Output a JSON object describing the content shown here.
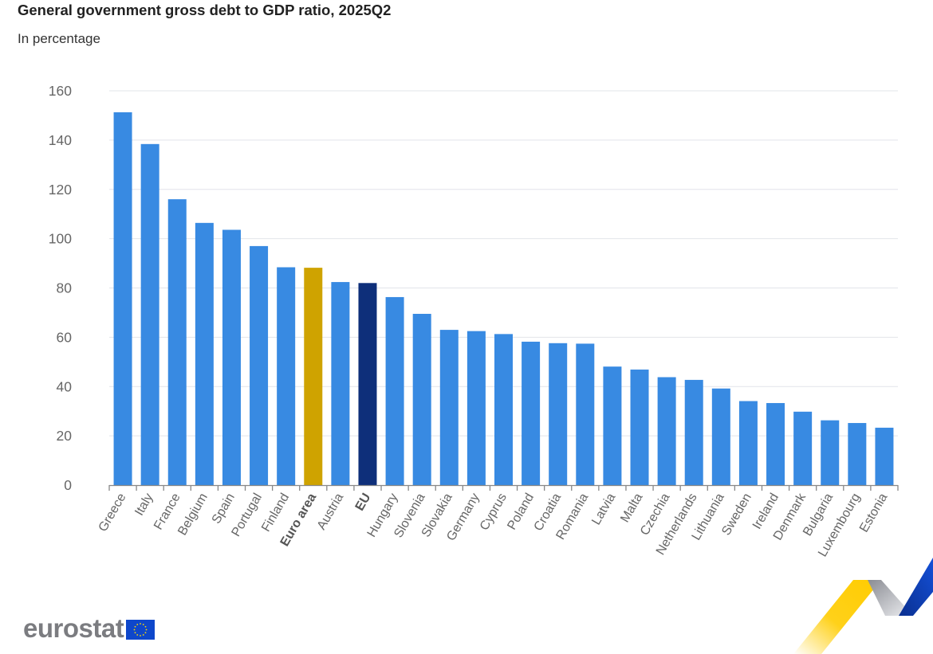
{
  "chart_data": {
    "type": "bar",
    "title": "General government gross debt to GDP ratio, 2025Q2",
    "subtitle": "In percentage",
    "xlabel": "",
    "ylabel": "",
    "ylim": [
      0,
      160
    ],
    "yticks": [
      0,
      20,
      40,
      60,
      80,
      100,
      120,
      140,
      160
    ],
    "grid": true,
    "legend": "none",
    "categories": [
      "Greece",
      "Italy",
      "France",
      "Belgium",
      "Spain",
      "Portugal",
      "Finland",
      "Euro area",
      "Austria",
      "EU",
      "Hungary",
      "Slovenia",
      "Slovakia",
      "Germany",
      "Cyprus",
      "Poland",
      "Croatia",
      "Romania",
      "Latvia",
      "Malta",
      "Czechia",
      "Netherlands",
      "Lithuania",
      "Sweden",
      "Ireland",
      "Denmark",
      "Bulgaria",
      "Luxembourg",
      "Estonia"
    ],
    "values": [
      151.3,
      138.4,
      116.0,
      106.4,
      103.6,
      97.0,
      88.4,
      88.2,
      82.4,
      82.0,
      76.3,
      69.5,
      63.0,
      62.5,
      61.3,
      58.2,
      57.6,
      57.4,
      48.1,
      46.9,
      43.8,
      42.7,
      39.2,
      34.1,
      33.3,
      29.8,
      26.3,
      25.2,
      23.3
    ],
    "highlight": {
      "Euro area": "euro_area",
      "EU": "eu"
    },
    "bold_categories": [
      "Euro area",
      "EU"
    ]
  },
  "colors": {
    "default_bar": "#388ae2",
    "euro_area": "#cfa300",
    "eu": "#0e2f7a",
    "flag_blue": "#0e47cb",
    "flag_star": "#ffdd00",
    "ribbon_yellow": "#ffcc00",
    "ribbon_grey": "#9a9ca3",
    "ribbon_blue": "#0e47cb"
  },
  "logo": {
    "text": "eurostat",
    "flag_icon": "eu-flag-icon"
  }
}
